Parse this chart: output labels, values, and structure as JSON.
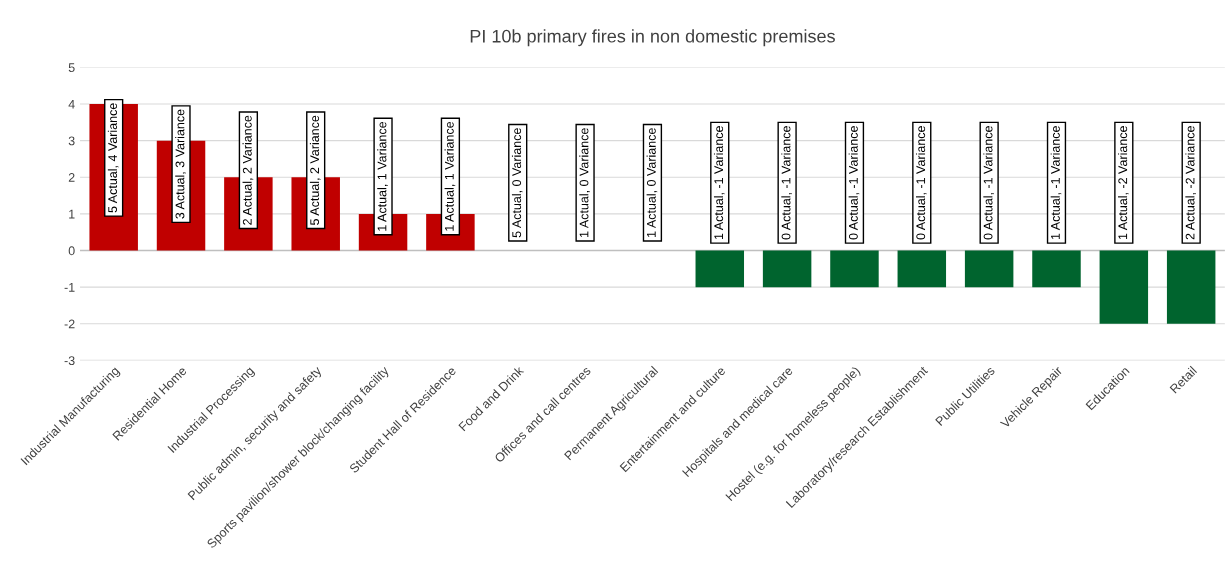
{
  "chart_data": {
    "type": "bar",
    "title": "PI 10b primary fires in non domestic premises",
    "categories": [
      "Industrial Manufacturing",
      "Residential Home",
      "Industrial Processing",
      "Public admin, security and safety",
      "Sports pavilion/shower block/changing facility",
      "Student Hall of Residence",
      "Food and Drink",
      "Offices and call centres",
      "Permanent Agricultural",
      "Entertainment and culture",
      "Hospitals and medical care",
      "Hostel (e.g. for homeless people)",
      "Laboratory/research Establishment",
      "Public Utilities",
      "Vehicle Repair",
      "Education",
      "Retail"
    ],
    "values": [
      4,
      3,
      2,
      2,
      1,
      1,
      0,
      0,
      0,
      -1,
      -1,
      -1,
      -1,
      -1,
      -1,
      -2,
      -2
    ],
    "colors": [
      "#c00000",
      "#c00000",
      "#c00000",
      "#c00000",
      "#c00000",
      "#c00000",
      "#c00000",
      "#c00000",
      "#c00000",
      "#00642e",
      "#00642e",
      "#00642e",
      "#00642e",
      "#00642e",
      "#00642e",
      "#00642e",
      "#00642e"
    ],
    "value_labels": [
      "5 Actual, 4 Variance",
      "3 Actual, 3 Variance",
      "2 Actual, 2 Variance",
      "5 Actual, 2 Variance",
      "1 Actual, 1 Variance",
      "1 Actual, 1 Variance",
      "5 Actual, 0 Variance",
      "1 Actual, 0 Variance",
      "1 Actual, 0 Variance",
      "1 Actual, -1 Variance",
      "0 Actual, -1 Variance",
      "0 Actual, -1 Variance",
      "0 Actual, -1 Variance",
      "0 Actual, -1 Variance",
      "1 Actual, -1 Variance",
      "1 Actual, -2 Variance",
      "2 Actual, -2 Variance"
    ],
    "ylim": [
      -3,
      5
    ],
    "yticks": [
      -3,
      -2,
      -1,
      0,
      1,
      2,
      3,
      4,
      5
    ],
    "grid": "y",
    "legend": false
  }
}
